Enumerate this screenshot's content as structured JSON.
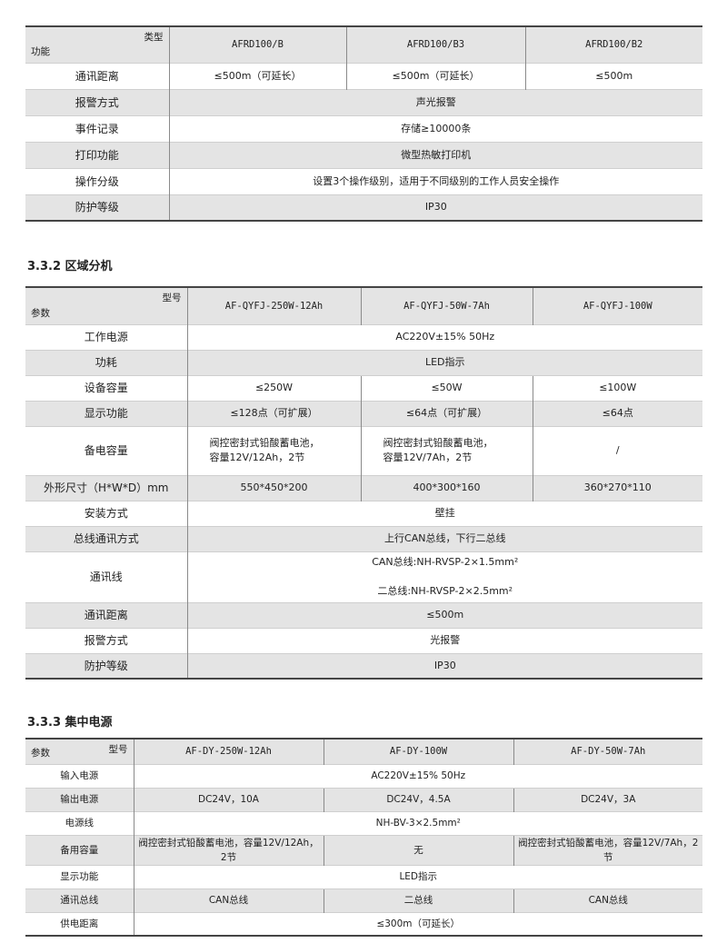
{
  "tables": [
    {
      "id": "t1",
      "corner_top": "类型",
      "corner_bottom": "功能",
      "col_widths": [
        158,
        195,
        197,
        195
      ],
      "headers": [
        "AFRD100/B",
        "AFRD100/B3",
        "AFRD100/B2"
      ],
      "rows": [
        {
          "label": "通讯距离",
          "cells": [
            "≤500m（可延长）",
            "≤500m（可延长）",
            "≤500m"
          ]
        },
        {
          "label": "报警方式",
          "cells": [
            "声光报警"
          ]
        },
        {
          "label": "事件记录",
          "cells": [
            "存储≥10000条"
          ]
        },
        {
          "label": "打印功能",
          "cells": [
            "微型热敏打印机"
          ]
        },
        {
          "label": "操作分级",
          "cells": [
            "设置3个操作级别，适用于不同级别的工作人员安全操作"
          ]
        },
        {
          "label": "防护等级",
          "cells": [
            "IP30"
          ]
        }
      ]
    },
    {
      "id": "t2",
      "corner_top": "型号",
      "corner_bottom": "参数",
      "col_widths": [
        178,
        191,
        189,
        187
      ],
      "headers": [
        "AF-QYFJ-250W-12Ah",
        "AF-QYFJ-50W-7Ah",
        "AF-QYFJ-100W"
      ],
      "rows": [
        {
          "label": "工作电源",
          "cells": [
            "AC220V±15%  50Hz"
          ]
        },
        {
          "label": "功耗",
          "cells": [
            "LED指示"
          ]
        },
        {
          "label": "设备容量",
          "cells": [
            "≤250W",
            "≤50W",
            "≤100W"
          ]
        },
        {
          "label": "显示功能",
          "cells": [
            "≤128点（可扩展）",
            "≤64点（可扩展）",
            "≤64点"
          ]
        },
        {
          "label": "备电容量",
          "cells": [
            "阀控密封式铅酸蓄电池，\n容量12V/12Ah，2节",
            "阀控密封式铅酸蓄电池，\n容量12V/7Ah，2节",
            "/"
          ],
          "tall": true,
          "left": [
            0,
            1
          ]
        },
        {
          "label": "外形尺寸（H*W*D）mm",
          "cells": [
            "550*450*200",
            "400*300*160",
            "360*270*110"
          ]
        },
        {
          "label": "安装方式",
          "cells": [
            "壁挂"
          ]
        },
        {
          "label": "总线通讯方式",
          "cells": [
            "上行CAN总线，下行二总线"
          ]
        },
        {
          "label": "通讯线",
          "cells": [
            "CAN总线:NH-RVSP-2×1.5mm²\n\n二总线:NH-RVSP-2×2.5mm²"
          ],
          "tall": true
        },
        {
          "label": "通讯距离",
          "cells": [
            "≤500m"
          ]
        },
        {
          "label": "报警方式",
          "cells": [
            "光报警"
          ]
        },
        {
          "label": "防护等级",
          "cells": [
            "IP30"
          ]
        }
      ]
    },
    {
      "id": "t3",
      "corner_top": "型号",
      "corner_bottom": "参数",
      "col_widths": [
        119,
        209,
        209,
        208
      ],
      "headers": [
        "AF-DY-250W-12Ah",
        "AF-DY-100W",
        "AF-DY-50W-7Ah"
      ],
      "rows": [
        {
          "label": "输入电源",
          "cells": [
            "AC220V±15%    50Hz"
          ]
        },
        {
          "label": "输出电源",
          "cells": [
            "DC24V，10A",
            "DC24V，4.5A",
            "DC24V，3A"
          ]
        },
        {
          "label": "电源线",
          "cells": [
            "NH-BV-3×2.5mm²"
          ]
        },
        {
          "label": "备用容量",
          "cells": [
            "阀控密封式铅酸蓄电池，容量12V/12Ah，2节",
            "无",
            "阀控密封式铅酸蓄电池，容量12V/7Ah，2节"
          ]
        },
        {
          "label": "显示功能",
          "cells": [
            "LED指示"
          ]
        },
        {
          "label": "通讯总线",
          "cells": [
            "CAN总线",
            "二总线",
            "CAN总线"
          ]
        },
        {
          "label": "供电距离",
          "cells": [
            "≤300m（可延长）"
          ]
        }
      ]
    }
  ],
  "sections": {
    "s2": "3.3.2 区域分机",
    "s3": "3.3.3 集中电源"
  }
}
